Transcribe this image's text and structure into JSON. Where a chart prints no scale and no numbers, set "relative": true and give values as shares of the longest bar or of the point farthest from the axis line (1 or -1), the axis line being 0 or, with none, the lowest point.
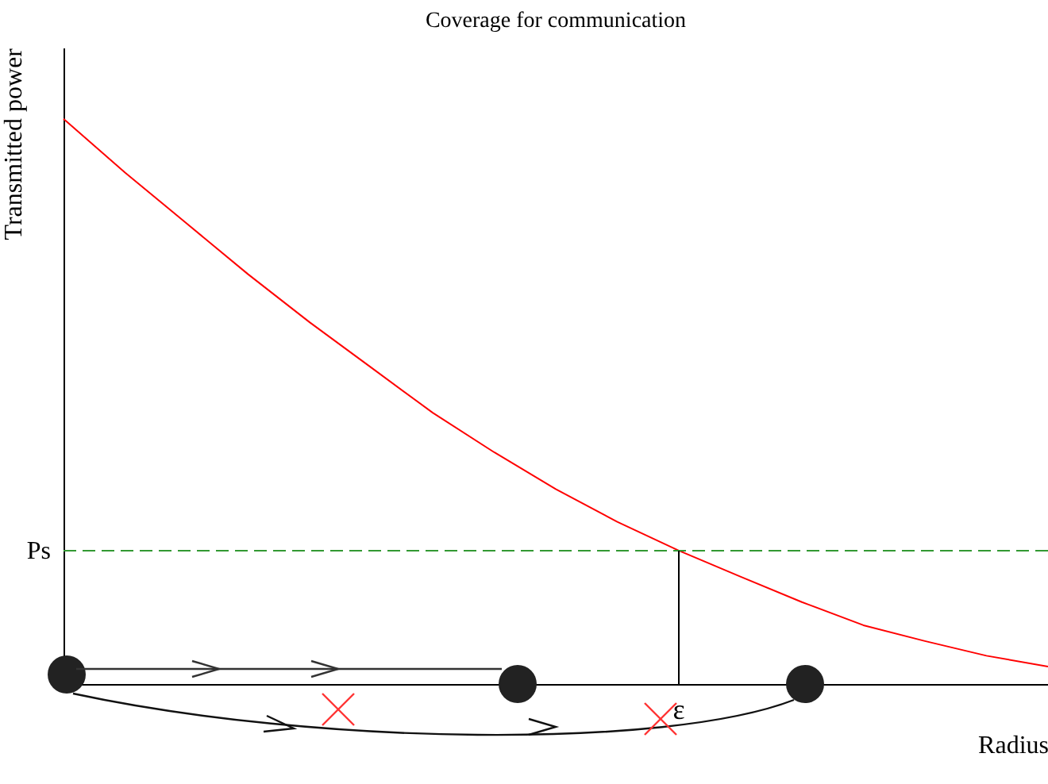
{
  "chart_data": {
    "type": "line",
    "title": "Coverage for communication",
    "xlabel": "Radius",
    "ylabel": "Transmitted power",
    "relative": true,
    "categories": [
      null,
      null,
      null,
      null,
      null,
      null,
      null,
      null,
      null,
      null,
      null,
      null,
      null,
      null,
      null,
      null,
      null
    ],
    "series": [
      {
        "color": "#ff0000",
        "values": [
          1.0,
          0.905,
          0.815,
          0.725,
          0.64,
          0.56,
          0.48,
          0.41,
          0.345,
          0.287,
          0.236,
          0.19,
          0.145,
          0.104,
          0.076,
          0.05,
          0.031
        ]
      }
    ],
    "ref_lines": [
      {
        "axis": "y",
        "value": 0.236,
        "label": "Ps",
        "color": "#339933",
        "line_style": "dashed"
      }
    ],
    "annotations": [
      "ε"
    ]
  }
}
